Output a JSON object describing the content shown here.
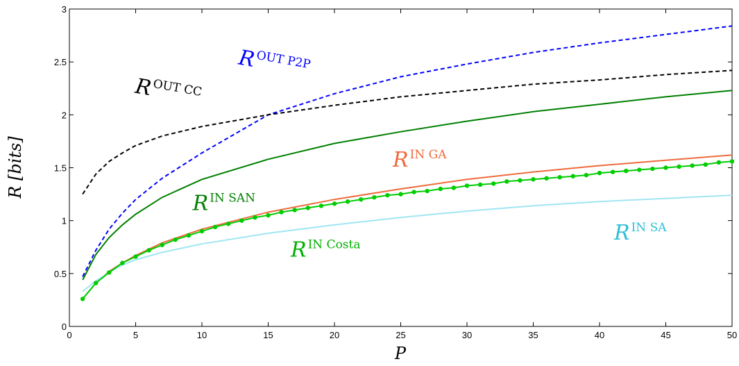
{
  "chart_data": {
    "type": "line",
    "xlabel": "P",
    "ylabel": "R [bits]",
    "xlim": [
      0,
      50
    ],
    "ylim": [
      0,
      3
    ],
    "xticks": [
      0,
      5,
      10,
      15,
      20,
      25,
      30,
      35,
      40,
      45,
      50
    ],
    "yticks": [
      0,
      0.5,
      1,
      1.5,
      2,
      2.5,
      3
    ],
    "xtick_labels": [
      "0",
      "5",
      "10",
      "15",
      "20",
      "25",
      "30",
      "35",
      "40",
      "45",
      "50"
    ],
    "ytick_labels": [
      "0",
      "0.5",
      "1",
      "1.5",
      "2",
      "2.5",
      "3"
    ],
    "grid": false,
    "series": [
      {
        "name": "OUT P2P",
        "color": "#0000ff",
        "dash": "dashed",
        "x": [
          1,
          2,
          3,
          4,
          5,
          7,
          10,
          15,
          20,
          25,
          30,
          35,
          40,
          45,
          50
        ],
        "y": [
          0.47,
          0.72,
          0.92,
          1.07,
          1.2,
          1.4,
          1.64,
          2.0,
          2.2,
          2.36,
          2.48,
          2.59,
          2.68,
          2.76,
          2.84
        ]
      },
      {
        "name": "OUT CC",
        "color": "#000000",
        "dash": "dashed",
        "x": [
          1,
          2,
          3,
          4,
          5,
          7,
          10,
          15,
          20,
          25,
          30,
          35,
          40,
          45,
          50
        ],
        "y": [
          1.25,
          1.44,
          1.56,
          1.64,
          1.71,
          1.8,
          1.89,
          2.0,
          2.09,
          2.17,
          2.23,
          2.29,
          2.33,
          2.38,
          2.42
        ]
      },
      {
        "name": "IN SAN",
        "color": "#007f00",
        "dash": "solid",
        "x": [
          1,
          2,
          3,
          4,
          5,
          7,
          10,
          15,
          20,
          25,
          30,
          35,
          40,
          45,
          50
        ],
        "y": [
          0.44,
          0.68,
          0.84,
          0.96,
          1.06,
          1.22,
          1.39,
          1.58,
          1.73,
          1.84,
          1.94,
          2.03,
          2.1,
          2.17,
          2.23
        ]
      },
      {
        "name": "IN GA",
        "color": "#ee6a3c",
        "dash": "solid",
        "x": [
          1,
          2,
          3,
          4,
          5,
          7,
          10,
          15,
          20,
          25,
          30,
          35,
          40,
          45,
          50
        ],
        "y": [
          0.26,
          0.41,
          0.52,
          0.6,
          0.67,
          0.79,
          0.92,
          1.08,
          1.2,
          1.3,
          1.39,
          1.46,
          1.52,
          1.57,
          1.62
        ]
      },
      {
        "name": "IN SA",
        "color": "#9fe6f2",
        "dash": "solid",
        "x": [
          1,
          2,
          3,
          4,
          5,
          7,
          10,
          15,
          20,
          25,
          30,
          35,
          40,
          45,
          50
        ],
        "y": [
          0.33,
          0.43,
          0.51,
          0.58,
          0.63,
          0.7,
          0.78,
          0.88,
          0.96,
          1.03,
          1.09,
          1.14,
          1.18,
          1.21,
          1.24
        ]
      },
      {
        "name": "IN Costa",
        "color": "#00cc00",
        "dash": "solid",
        "marker": "circle",
        "x": [
          1,
          2,
          3,
          4,
          5,
          6,
          7,
          8,
          9,
          10,
          11,
          12,
          13,
          14,
          15,
          16,
          17,
          18,
          19,
          20,
          21,
          22,
          23,
          24,
          25,
          26,
          27,
          28,
          29,
          30,
          31,
          32,
          33,
          34,
          35,
          36,
          37,
          38,
          39,
          40,
          41,
          42,
          43,
          44,
          45,
          46,
          47,
          48,
          49,
          50
        ],
        "y": [
          0.26,
          0.41,
          0.51,
          0.6,
          0.66,
          0.72,
          0.77,
          0.82,
          0.86,
          0.9,
          0.94,
          0.97,
          1.0,
          1.03,
          1.05,
          1.08,
          1.1,
          1.12,
          1.14,
          1.16,
          1.18,
          1.2,
          1.22,
          1.24,
          1.25,
          1.27,
          1.28,
          1.3,
          1.31,
          1.33,
          1.34,
          1.35,
          1.37,
          1.38,
          1.39,
          1.4,
          1.41,
          1.42,
          1.43,
          1.45,
          1.46,
          1.47,
          1.48,
          1.49,
          1.5,
          1.51,
          1.52,
          1.53,
          1.55,
          1.56
        ]
      }
    ],
    "annotations": [
      {
        "main": "R",
        "sup": "OUT P2P",
        "color": "#0000ff",
        "x": 12.7,
        "y": 2.48,
        "rotate": 10
      },
      {
        "main": "R",
        "sup": "OUT CC",
        "color": "#000000",
        "x": 4.9,
        "y": 2.21,
        "rotate": 10
      },
      {
        "main": "R",
        "sup": "IN SAN",
        "color": "#007f00",
        "x": 9.3,
        "y": 1.1,
        "rotate": 0
      },
      {
        "main": "R",
        "sup": "IN GA",
        "color": "#ee6a3c",
        "x": 24.4,
        "y": 1.51,
        "rotate": 0
      },
      {
        "main": "R",
        "sup": "IN SA",
        "color": "#2ec0d6",
        "x": 41.1,
        "y": 0.82,
        "rotate": 0
      },
      {
        "main": "R",
        "sup": "IN Costa",
        "color": "#00b000",
        "x": 16.7,
        "y": 0.66,
        "rotate": 0
      }
    ]
  }
}
